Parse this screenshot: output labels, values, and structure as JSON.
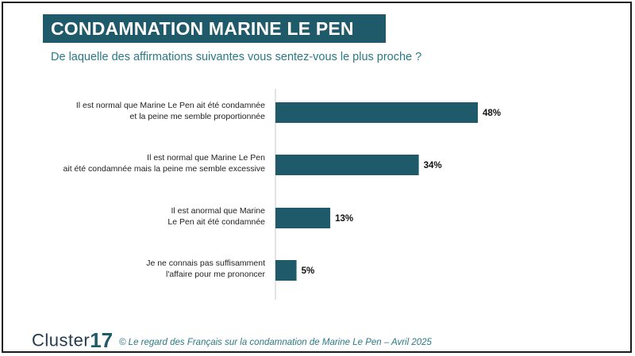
{
  "title": "CONDAMNATION MARINE LE PEN",
  "subtitle": "De laquelle des affirmations suivantes vous sentez-vous le plus proche ?",
  "colors": {
    "banner": "#1f5a6b",
    "bar": "#1f5a6b",
    "accent": "#2a7a86"
  },
  "chart_data": {
    "type": "bar",
    "orientation": "horizontal",
    "categories": [
      [
        "Il est normal que Marine Le Pen ait été condamnée",
        "et la peine me semble proportionnée"
      ],
      [
        "Il est normal que Marine Le Pen",
        "ait été condamnée mais la peine me semble excessive"
      ],
      [
        "Il est anormal que Marine",
        "Le Pen ait été condamnée"
      ],
      [
        "Je ne connais pas suffisamment",
        "l'affaire pour me prononcer"
      ]
    ],
    "values": [
      48,
      34,
      13,
      5
    ],
    "value_labels": [
      "48%",
      "34%",
      "13%",
      "5%"
    ],
    "xlim": [
      0,
      100
    ],
    "grid": false
  },
  "footer": {
    "logo_word": "Cluster",
    "logo_num": "17",
    "source": "© Le regard des Français sur la condamnation de Marine Le Pen – Avril 2025"
  }
}
